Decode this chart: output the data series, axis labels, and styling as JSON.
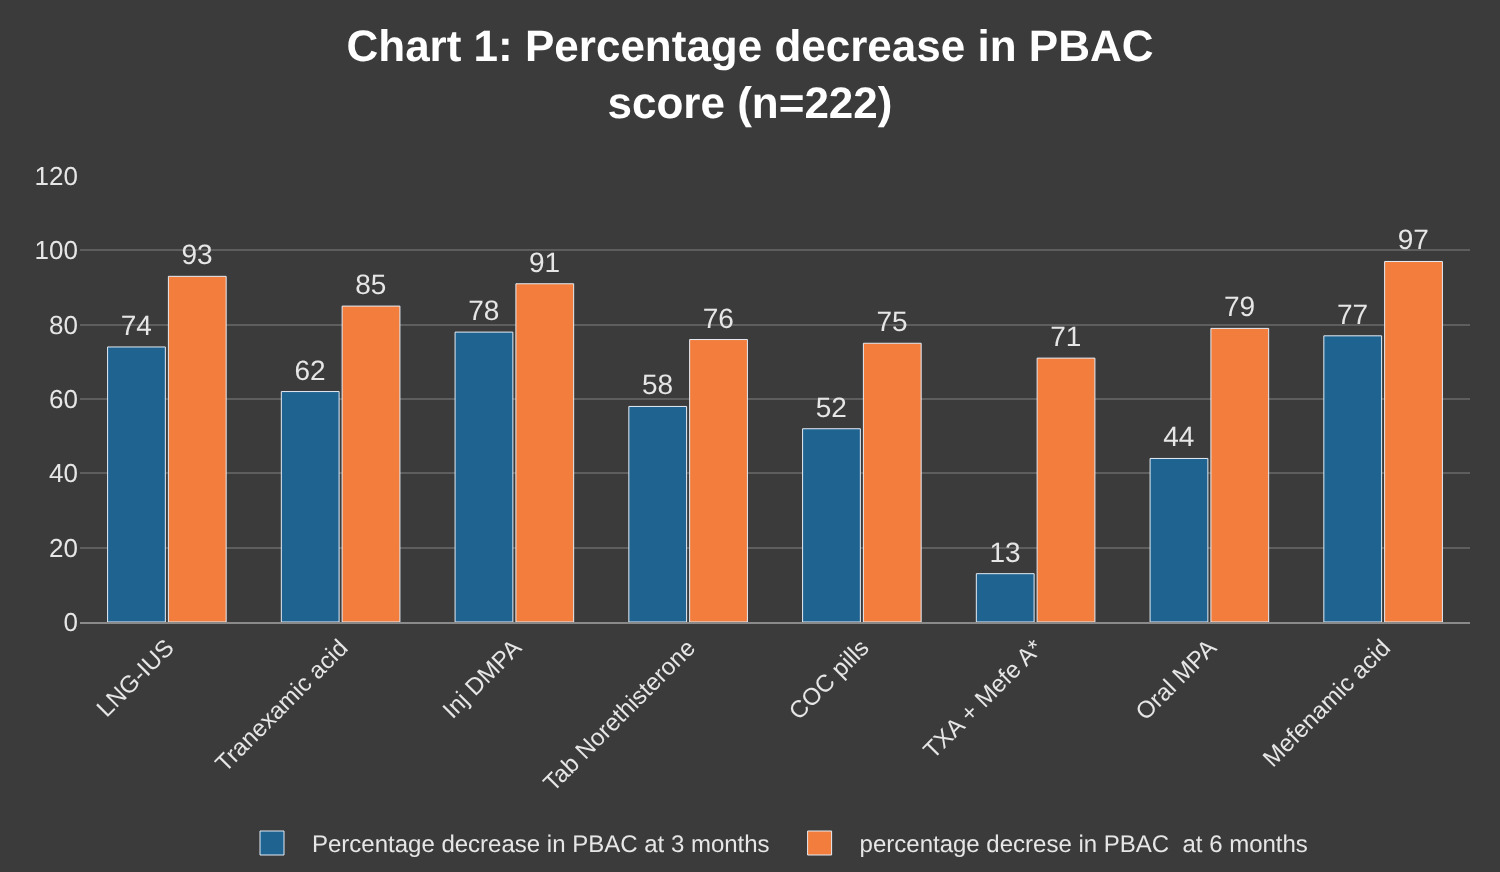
{
  "chart_data": {
    "type": "bar",
    "title": "Chart 1: Percentage decrease in PBAC score (n=222)",
    "categories": [
      "LNG-IUS",
      "Tranexamic acid",
      "Inj DMPA",
      "Tab Norethisterone",
      "COC pills",
      "TXA + Mefe A*",
      "Oral MPA",
      "Mefenamic acid"
    ],
    "series": [
      {
        "name": "Percentage decrease in PBAC at 3 months",
        "color": "#1f6391",
        "values": [
          74,
          62,
          78,
          58,
          52,
          13,
          44,
          77
        ]
      },
      {
        "name": "percentage decrese in PBAC  at 6 months",
        "color": "#f27d3c",
        "values": [
          93,
          85,
          91,
          76,
          75,
          71,
          79,
          97
        ]
      }
    ],
    "ylim": [
      0,
      120
    ],
    "yticks": [
      0,
      20,
      40,
      60,
      80,
      100,
      120
    ],
    "grid": "y",
    "legend": "bottom",
    "data_labels": true
  }
}
